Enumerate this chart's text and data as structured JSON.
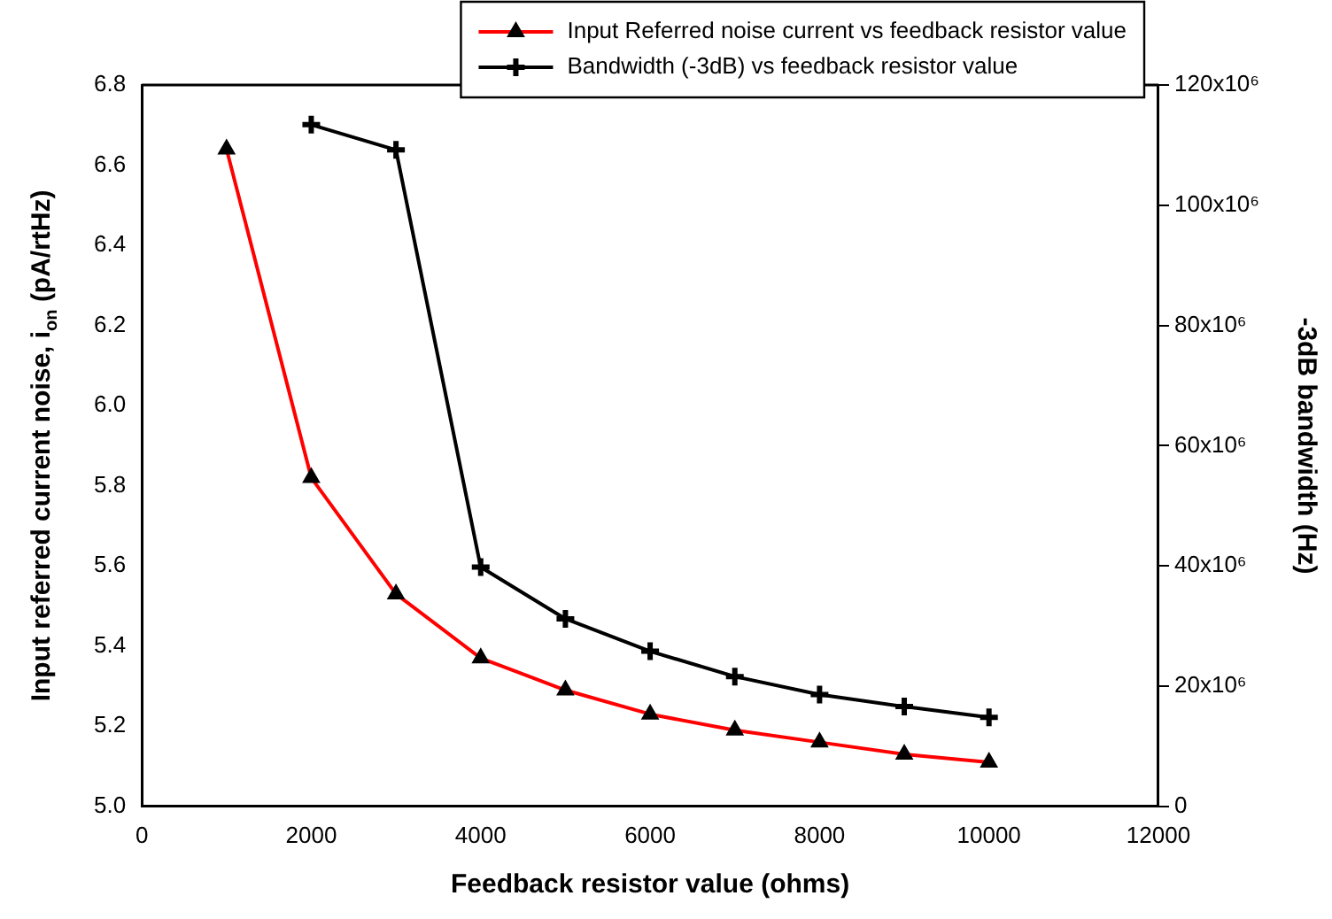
{
  "chart_data": {
    "type": "line",
    "xlabel": "Feedback resistor value (ohms)",
    "ylabel": "Input referred current noise, i$_{on}$ (pA/rtHz)",
    "y2label": "-3dB bandwidth (Hz)",
    "x": [
      1000,
      2000,
      3000,
      4000,
      5000,
      6000,
      7000,
      8000,
      9000,
      10000
    ],
    "series": [
      {
        "name": "Input Referred noise current vs feedback resistor value",
        "color": "#ff0000",
        "marker": "triangle",
        "values": [
          6.64,
          5.82,
          5.53,
          5.37,
          5.29,
          5.23,
          5.19,
          5.16,
          5.13,
          5.11
        ]
      },
      {
        "name": "Bandwidth (-3dB) vs feedback resistor value",
        "color": "#000000",
        "marker": "cross",
        "axis": "y2",
        "x": [
          2000,
          3000,
          4000,
          5000,
          6000,
          7000,
          8000,
          9000,
          10000
        ],
        "values": [
          113400000,
          109200000,
          39800000,
          31200000,
          25800000,
          21600000,
          18600000,
          16600000,
          14800000
        ]
      }
    ],
    "xlim": [
      0,
      12000
    ],
    "xticks": [
      0,
      2000,
      4000,
      6000,
      8000,
      10000,
      12000
    ],
    "ylim": [
      5.0,
      6.8
    ],
    "yticks": [
      {
        "value": 5.0,
        "label": "5.0"
      },
      5.2,
      5.4,
      5.6,
      5.8,
      {
        "value": 6.0,
        "label": "6.0"
      },
      6.2,
      6.4,
      6.6,
      6.8
    ],
    "y2lim": [
      0,
      120000000
    ],
    "y2ticks": [
      0,
      {
        "value": 20000000,
        "label": "20x10⁶"
      },
      {
        "value": 40000000,
        "label": "40x10⁶"
      },
      {
        "value": 60000000,
        "label": "60x10⁶"
      },
      {
        "value": 80000000,
        "label": "80x10⁶"
      },
      {
        "value": 100000000,
        "label": "100x10⁶"
      },
      {
        "value": 120000000,
        "label": "120x10⁶"
      }
    ],
    "grid": false,
    "legend": "top right",
    "line_style": "solid"
  }
}
